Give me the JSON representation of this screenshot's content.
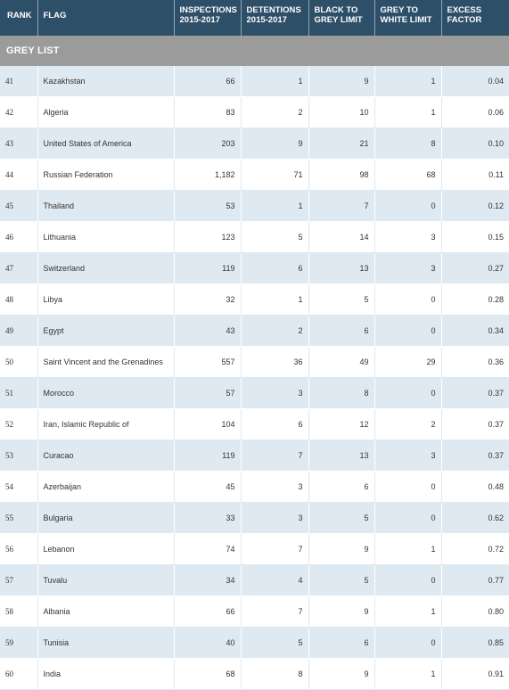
{
  "headers": {
    "rank": "RANK",
    "flag": "FLAG",
    "inspections": [
      "INSPECTIONS",
      "2015-2017"
    ],
    "detentions": [
      "DETENTIONS",
      "2015-2017"
    ],
    "black_to_grey": [
      "BLACK TO",
      "GREY LIMIT"
    ],
    "grey_to_white": [
      "GREY TO",
      "WHITE LIMIT"
    ],
    "excess": [
      "EXCESS",
      "FACTOR"
    ]
  },
  "section_title": "GREY LIST",
  "rows": [
    {
      "rank": "41",
      "flag": "Kazakhstan",
      "inspections": "66",
      "detentions": "1",
      "black_to_grey": "9",
      "grey_to_white": "1",
      "excess": "0.04"
    },
    {
      "rank": "42",
      "flag": "Algeria",
      "inspections": "83",
      "detentions": "2",
      "black_to_grey": "10",
      "grey_to_white": "1",
      "excess": "0.06"
    },
    {
      "rank": "43",
      "flag": "United States of America",
      "inspections": "203",
      "detentions": "9",
      "black_to_grey": "21",
      "grey_to_white": "8",
      "excess": "0.10"
    },
    {
      "rank": "44",
      "flag": "Russian Federation",
      "inspections": "1,182",
      "detentions": "71",
      "black_to_grey": "98",
      "grey_to_white": "68",
      "excess": "0.11"
    },
    {
      "rank": "45",
      "flag": "Thailand",
      "inspections": "53",
      "detentions": "1",
      "black_to_grey": "7",
      "grey_to_white": "0",
      "excess": "0.12"
    },
    {
      "rank": "46",
      "flag": "Lithuania",
      "inspections": "123",
      "detentions": "5",
      "black_to_grey": "14",
      "grey_to_white": "3",
      "excess": "0.15"
    },
    {
      "rank": "47",
      "flag": "Switzerland",
      "inspections": "119",
      "detentions": "6",
      "black_to_grey": "13",
      "grey_to_white": "3",
      "excess": "0.27"
    },
    {
      "rank": "48",
      "flag": "Libya",
      "inspections": "32",
      "detentions": "1",
      "black_to_grey": "5",
      "grey_to_white": "0",
      "excess": "0.28"
    },
    {
      "rank": "49",
      "flag": "Egypt",
      "inspections": "43",
      "detentions": "2",
      "black_to_grey": "6",
      "grey_to_white": "0",
      "excess": "0.34"
    },
    {
      "rank": "50",
      "flag": "Saint Vincent and the Grenadines",
      "inspections": "557",
      "detentions": "36",
      "black_to_grey": "49",
      "grey_to_white": "29",
      "excess": "0.36"
    },
    {
      "rank": "51",
      "flag": "Morocco",
      "inspections": "57",
      "detentions": "3",
      "black_to_grey": "8",
      "grey_to_white": "0",
      "excess": "0.37"
    },
    {
      "rank": "52",
      "flag": "Iran, Islamic Republic of",
      "inspections": "104",
      "detentions": "6",
      "black_to_grey": "12",
      "grey_to_white": "2",
      "excess": "0.37"
    },
    {
      "rank": "53",
      "flag": "Curacao",
      "inspections": "119",
      "detentions": "7",
      "black_to_grey": "13",
      "grey_to_white": "3",
      "excess": "0.37"
    },
    {
      "rank": "54",
      "flag": "Azerbaijan",
      "inspections": "45",
      "detentions": "3",
      "black_to_grey": "6",
      "grey_to_white": "0",
      "excess": "0.48"
    },
    {
      "rank": "55",
      "flag": "Bulgaria",
      "inspections": "33",
      "detentions": "3",
      "black_to_grey": "5",
      "grey_to_white": "0",
      "excess": "0.62"
    },
    {
      "rank": "56",
      "flag": "Lebanon",
      "inspections": "74",
      "detentions": "7",
      "black_to_grey": "9",
      "grey_to_white": "1",
      "excess": "0.72"
    },
    {
      "rank": "57",
      "flag": "Tuvalu",
      "inspections": "34",
      "detentions": "4",
      "black_to_grey": "5",
      "grey_to_white": "0",
      "excess": "0.77"
    },
    {
      "rank": "58",
      "flag": "Albania",
      "inspections": "66",
      "detentions": "7",
      "black_to_grey": "9",
      "grey_to_white": "1",
      "excess": "0.80"
    },
    {
      "rank": "59",
      "flag": "Tunisia",
      "inspections": "40",
      "detentions": "5",
      "black_to_grey": "6",
      "grey_to_white": "0",
      "excess": "0.85"
    },
    {
      "rank": "60",
      "flag": "India",
      "inspections": "68",
      "detentions": "8",
      "black_to_grey": "9",
      "grey_to_white": "1",
      "excess": "0.91"
    }
  ]
}
